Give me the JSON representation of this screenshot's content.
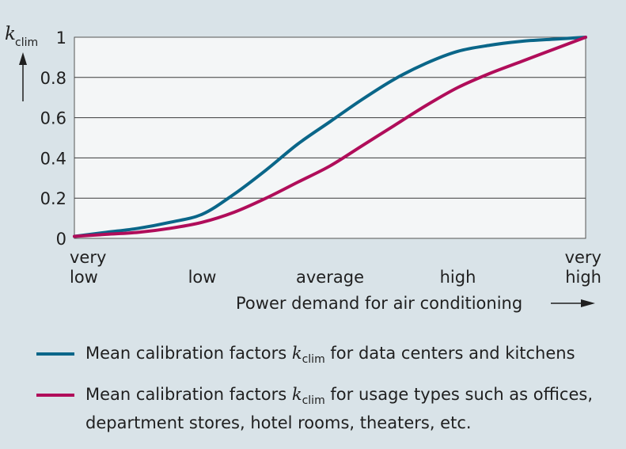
{
  "chart_data": {
    "type": "line",
    "ylabel": {
      "symbol": "k",
      "subscript": "clim"
    },
    "xlabel": "Power demand for air conditioning",
    "ylim": [
      0,
      1
    ],
    "xlim": [
      0,
      4
    ],
    "yticks": [
      "0",
      "0.2",
      "0.4",
      "0.6",
      "0.8",
      "1"
    ],
    "ytick_values": [
      0,
      0.2,
      0.4,
      0.6,
      0.8,
      1
    ],
    "xticks": [
      {
        "lines": [
          "very",
          "low"
        ],
        "value": 0
      },
      {
        "lines": [
          "low"
        ],
        "value": 1
      },
      {
        "lines": [
          "average"
        ],
        "value": 2
      },
      {
        "lines": [
          "high"
        ],
        "value": 3
      },
      {
        "lines": [
          "very",
          "high"
        ],
        "value": 4
      }
    ],
    "grid": "horizontal",
    "series": [
      {
        "color": "#0a6689",
        "x": [
          0,
          0.25,
          0.5,
          0.75,
          1,
          1.25,
          1.5,
          1.75,
          2,
          2.25,
          2.5,
          2.75,
          3,
          3.25,
          3.5,
          3.75,
          4
        ],
        "values": [
          0.01,
          0.03,
          0.05,
          0.08,
          0.12,
          0.22,
          0.34,
          0.47,
          0.58,
          0.69,
          0.79,
          0.87,
          0.93,
          0.96,
          0.98,
          0.99,
          1.0
        ]
      },
      {
        "color": "#b00d5a",
        "x": [
          0,
          0.25,
          0.5,
          0.75,
          1,
          1.25,
          1.5,
          1.75,
          2,
          2.25,
          2.5,
          2.75,
          3,
          3.25,
          3.5,
          3.75,
          4
        ],
        "values": [
          0.01,
          0.02,
          0.03,
          0.05,
          0.08,
          0.13,
          0.2,
          0.28,
          0.36,
          0.46,
          0.56,
          0.66,
          0.75,
          0.82,
          0.88,
          0.94,
          1.0
        ]
      }
    ]
  },
  "legend": [
    {
      "prefix": "Mean calibration factors ",
      "k": "k",
      "sub": "clim",
      "suffix": " for data centers and kitchens",
      "color": "#0a6689"
    },
    {
      "prefix": "Mean calibration factors ",
      "k": "k",
      "sub": "clim",
      "suffix": " for usage types such as offices, department stores, hotel rooms, theaters, etc.",
      "color": "#b00d5a"
    }
  ]
}
